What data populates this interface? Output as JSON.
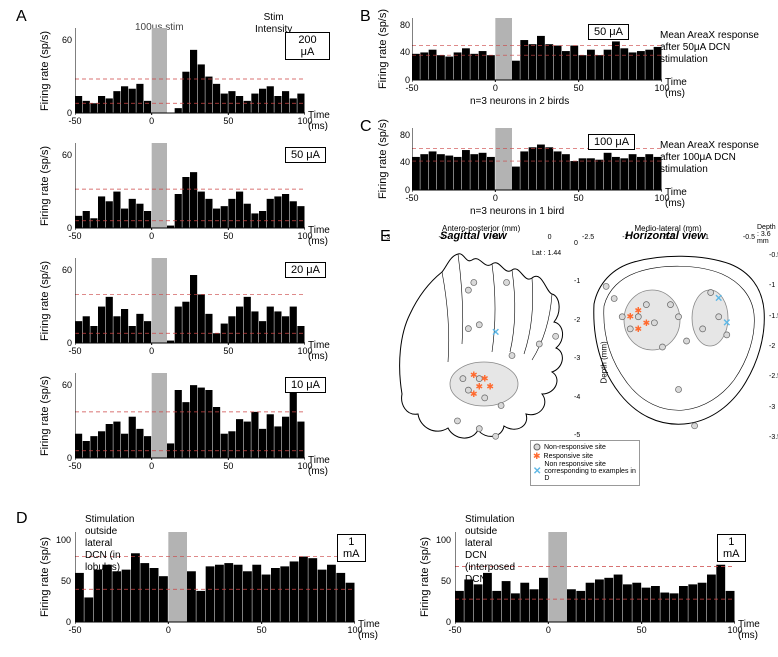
{
  "colors": {
    "bar": "#000000",
    "bg": "#ffffff",
    "stim_band": "#b3b3b3",
    "dash1": "#cc4444",
    "dash2": "#888888",
    "axis": "#000000",
    "circle_fill": "#d9d9d9",
    "circle_stroke": "#666666",
    "asterisk": "#ff6a2f",
    "cross": "#5fb8e6"
  },
  "panelA": {
    "label": "A",
    "header1": "Stim",
    "header2": "Intensity",
    "stim_note": "100μs stim",
    "ylabel": "Firing rate (sp/s)",
    "xlabel": "Time (ms)",
    "xlim": [
      -50,
      100
    ],
    "xticks": [
      -50,
      0,
      50,
      100
    ],
    "ylim": [
      0,
      70
    ],
    "yticks": [
      0,
      60
    ],
    "stim_band": [
      0,
      10
    ],
    "bin_width": 5,
    "charts": [
      {
        "intensity": "200 μA",
        "dash_hi": 28,
        "dash_lo": 8,
        "values": [
          14,
          10,
          8,
          14,
          12,
          18,
          22,
          20,
          24,
          10,
          2,
          0,
          0,
          4,
          34,
          52,
          40,
          30,
          24,
          16,
          18,
          14,
          10,
          16,
          20,
          22,
          14,
          18,
          12,
          16
        ]
      },
      {
        "intensity": "50 μA",
        "dash_hi": 32,
        "dash_lo": 6,
        "values": [
          10,
          14,
          8,
          26,
          22,
          30,
          16,
          24,
          20,
          14,
          2,
          0,
          2,
          28,
          42,
          46,
          30,
          24,
          16,
          18,
          24,
          30,
          20,
          12,
          14,
          24,
          26,
          28,
          22,
          18
        ]
      },
      {
        "intensity": "20 μA",
        "dash_hi": 40,
        "dash_lo": 8,
        "values": [
          18,
          22,
          14,
          30,
          38,
          22,
          28,
          14,
          24,
          18,
          4,
          0,
          2,
          30,
          34,
          56,
          40,
          24,
          8,
          16,
          22,
          30,
          38,
          26,
          18,
          30,
          26,
          22,
          30,
          14
        ]
      },
      {
        "intensity": "10 μA",
        "dash_hi": 38,
        "dash_lo": 6,
        "values": [
          20,
          14,
          18,
          22,
          28,
          30,
          20,
          34,
          24,
          18,
          6,
          4,
          12,
          56,
          46,
          60,
          58,
          56,
          42,
          20,
          22,
          32,
          30,
          38,
          24,
          36,
          26,
          34,
          58,
          30
        ]
      }
    ]
  },
  "panelB": {
    "label": "B",
    "ylabel": "Firing rate (sp/s)",
    "xlabel": "Time (ms)",
    "title": "Mean AreaX response after 50μA DCN stimulation",
    "subtitle": "n=3 neurons in 2 birds",
    "intensity": "50 μA",
    "xlim": [
      -50,
      100
    ],
    "xticks": [
      -50,
      0,
      50,
      100
    ],
    "ylim": [
      0,
      90
    ],
    "yticks": [
      0,
      40,
      80
    ],
    "stim_band": [
      0,
      10
    ],
    "bin_width": 5,
    "dash_hi": 50,
    "dash_lo": 36,
    "values": [
      38,
      40,
      44,
      36,
      34,
      40,
      46,
      38,
      42,
      36,
      20,
      10,
      28,
      58,
      52,
      64,
      52,
      50,
      42,
      50,
      36,
      44,
      36,
      44,
      56,
      46,
      40,
      42,
      44,
      48
    ]
  },
  "panelC": {
    "label": "C",
    "ylabel": "Firing rate (sp/s)",
    "xlabel": "Time (ms)",
    "title": "Mean AreaX response after 100μA DCN stimulation",
    "subtitle": "n=3 neurons in 1 bird",
    "intensity": "100 μA",
    "xlim": [
      -50,
      100
    ],
    "xticks": [
      -50,
      0,
      50,
      100
    ],
    "ylim": [
      0,
      90
    ],
    "yticks": [
      0,
      40,
      80
    ],
    "stim_band": [
      0,
      10
    ],
    "bin_width": 5,
    "dash_hi": 60,
    "dash_lo": 42,
    "values": [
      48,
      52,
      56,
      52,
      50,
      48,
      58,
      52,
      54,
      48,
      20,
      16,
      34,
      56,
      62,
      66,
      62,
      56,
      52,
      42,
      46,
      46,
      44,
      54,
      48,
      46,
      52,
      48,
      52,
      48
    ]
  },
  "panelD": {
    "label": "D",
    "ylabel": "Firing rate (sp/s)",
    "xlabel": "Time (ms)",
    "xlim": [
      -50,
      100
    ],
    "xticks": [
      -50,
      0,
      50,
      100
    ],
    "ylim": [
      0,
      110
    ],
    "yticks": [
      0,
      50,
      100
    ],
    "stim_band": [
      0,
      10
    ],
    "bin_width": 5,
    "charts": [
      {
        "title": "Stimulation outside lateral DCN (in lobules)",
        "intensity": "1 mA",
        "dash_hi": 80,
        "dash_lo": 40,
        "values": [
          60,
          30,
          64,
          70,
          62,
          64,
          84,
          72,
          66,
          56,
          30,
          30,
          62,
          38,
          68,
          70,
          72,
          70,
          62,
          70,
          58,
          66,
          68,
          74,
          80,
          78,
          64,
          70,
          60,
          48
        ]
      },
      {
        "title": "Stimulation outside lateral DCN (interposed DCN)",
        "intensity": "1 mA",
        "dash_hi": 68,
        "dash_lo": 28,
        "values": [
          38,
          52,
          46,
          60,
          38,
          50,
          35,
          48,
          40,
          54,
          24,
          28,
          40,
          38,
          48,
          52,
          54,
          58,
          46,
          48,
          42,
          44,
          36,
          35,
          44,
          46,
          48,
          58,
          70,
          38
        ]
      }
    ]
  },
  "panelE": {
    "label": "E",
    "sagittal_title": "Sagittal view",
    "horizontal_title": "Horizontal view",
    "sag_xlabel": "Antero-posterior (mm)",
    "sag_ylabel": "Depth (mm)",
    "hor_xlabel": "Medio-lateral (mm)",
    "hor_ylabel": "Antero-posterior (mm)",
    "lat_note": "Lat : 1.44",
    "depth_note": "Depth : 3.6 mm",
    "sag_xticks": [
      "-3",
      "-2",
      "-1",
      "0"
    ],
    "sag_yticks": [
      "0",
      "-1",
      "-2",
      "-3",
      "-4",
      "-5"
    ],
    "hor_xticks": [
      "-2.5",
      "-2",
      "-1.5",
      "-1",
      "-0.5"
    ],
    "hor_yticks": [
      "-0.5",
      "-1",
      "-1.5",
      "-2",
      "-2.5",
      "-3",
      "-3.5"
    ],
    "legend": {
      "non_resp": "Non-responsive site",
      "resp": "Responsive site",
      "cross": "Non responsive site corresponding to examples in D"
    },
    "sagittal_points": {
      "non_responsive": [
        [
          -1.5,
          -1.0
        ],
        [
          -1.6,
          -1.2
        ],
        [
          -0.9,
          -1.0
        ],
        [
          -1.4,
          -2.1
        ],
        [
          -1.6,
          -2.2
        ],
        [
          0.0,
          -2.4
        ],
        [
          -0.3,
          -2.6
        ],
        [
          -0.8,
          -2.9
        ],
        [
          -1.4,
          -3.5
        ],
        [
          -1.7,
          -3.5
        ],
        [
          -1.6,
          -3.8
        ],
        [
          -1.3,
          -4.0
        ],
        [
          -1.0,
          -4.2
        ],
        [
          -1.8,
          -4.6
        ],
        [
          -1.4,
          -4.8
        ],
        [
          -1.1,
          -5.0
        ]
      ],
      "responsive": [
        [
          -1.5,
          -3.4
        ],
        [
          -1.3,
          -3.5
        ],
        [
          -1.4,
          -3.7
        ],
        [
          -1.5,
          -3.9
        ],
        [
          -1.2,
          -3.7
        ]
      ],
      "cross": [
        [
          -1.1,
          -2.3
        ]
      ]
    },
    "horizontal_points": {
      "non_responsive": [
        [
          -2.3,
          -1.0
        ],
        [
          -2.2,
          -1.2
        ],
        [
          -2.1,
          -1.5
        ],
        [
          -2.0,
          -1.7
        ],
        [
          -1.9,
          -1.5
        ],
        [
          -1.8,
          -1.3
        ],
        [
          -1.7,
          -1.6
        ],
        [
          -1.5,
          -1.3
        ],
        [
          -1.4,
          -1.5
        ],
        [
          -1.6,
          -2.0
        ],
        [
          -1.3,
          -1.9
        ],
        [
          -1.1,
          -1.7
        ],
        [
          -1.0,
          -1.1
        ],
        [
          -0.9,
          -1.5
        ],
        [
          -0.8,
          -1.8
        ],
        [
          -1.4,
          -2.7
        ],
        [
          -1.2,
          -3.3
        ]
      ],
      "responsive": [
        [
          -2.0,
          -1.5
        ],
        [
          -1.9,
          -1.7
        ],
        [
          -1.8,
          -1.6
        ],
        [
          -1.9,
          -1.4
        ]
      ],
      "cross": [
        [
          -0.9,
          -1.2
        ],
        [
          -0.8,
          -1.6
        ]
      ]
    }
  }
}
